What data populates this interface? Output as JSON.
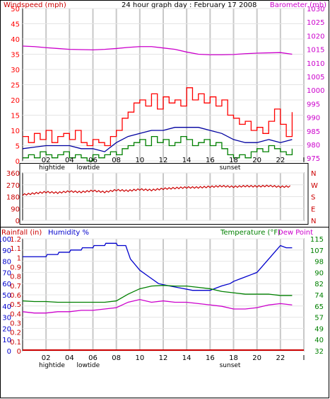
{
  "header": {
    "title": "24 hour graph day : February 17 2008",
    "left_label": "Windspeed (mph)",
    "right_label": "Barometer (mb)"
  },
  "panel3_labels": {
    "rainfall": "Rainfall (in)",
    "humidity": "Humidity %",
    "temperature": "Temperature (°F)",
    "dewpoint": "Dew Point"
  },
  "colors": {
    "wind": "#ff0000",
    "gust": "#ff0000",
    "avg_wind": "#0000a0",
    "low_wind": "#008000",
    "barometer": "#cc00cc",
    "direction": "#cc0000",
    "rain": "#cc0000",
    "humidity": "#0000cc",
    "temperature": "#008000",
    "dewpoint": "#cc00cc",
    "grid": "#c8c8c8",
    "frame": "#000000"
  },
  "x_ticks": [
    "02",
    "04",
    "06",
    "08",
    "10",
    "12",
    "14",
    "16",
    "18",
    "20",
    "22",
    "I"
  ],
  "x_events_panel1": [
    {
      "label": "hightide",
      "x": 2.5
    },
    {
      "label": "lowtide",
      "x": 5.6
    },
    {
      "label": "sunset",
      "x": 17.7
    }
  ],
  "x_events_panel3": [
    {
      "label": "hightide",
      "x": 2.5
    },
    {
      "label": "lowtide",
      "x": 5.6
    },
    {
      "label": "sunset",
      "x": 17.7
    }
  ],
  "chart_data": [
    {
      "type": "line",
      "xlim": [
        0,
        24
      ],
      "left_axis": {
        "ticks": [
          0,
          5,
          10,
          15,
          20,
          25,
          30,
          35,
          40,
          45,
          50
        ],
        "ylim": [
          0,
          50
        ]
      },
      "right_axis": {
        "ticks": [
          975,
          980,
          985,
          990,
          995,
          1000,
          1005,
          1010,
          1015,
          1020,
          1025,
          1030
        ],
        "ylim": [
          974,
          1030
        ]
      },
      "series": [
        {
          "key": "gust",
          "axis": "left",
          "x": [
            0,
            0.5,
            1,
            1.5,
            2,
            2.5,
            3,
            3.5,
            4,
            4.5,
            5,
            5.5,
            6,
            6.5,
            7,
            7.5,
            8,
            8.5,
            9,
            9.5,
            10,
            10.5,
            11,
            11.5,
            12,
            12.5,
            13,
            13.5,
            14,
            14.5,
            15,
            15.5,
            16,
            16.5,
            17,
            17.5,
            18,
            18.5,
            19,
            19.5,
            20,
            20.5,
            21,
            21.5,
            22,
            22.5,
            23
          ],
          "y": [
            8,
            6,
            9,
            7,
            10,
            6,
            8,
            9,
            7,
            10,
            6,
            5,
            7,
            6,
            5,
            8,
            10,
            14,
            16,
            19,
            20,
            18,
            22,
            17,
            21,
            19,
            20,
            18,
            24,
            20,
            22,
            19,
            21,
            18,
            20,
            15,
            14,
            12,
            13,
            10,
            11,
            9,
            13,
            17,
            12,
            8,
            16
          ]
        },
        {
          "key": "avg_wind",
          "axis": "left",
          "x": [
            0,
            1,
            2,
            3,
            4,
            5,
            6,
            7,
            8,
            9,
            10,
            11,
            12,
            13,
            14,
            15,
            16,
            17,
            18,
            19,
            20,
            21,
            22,
            23
          ],
          "y": [
            4,
            4.5,
            5,
            5,
            5,
            4,
            4,
            3,
            6,
            8,
            9,
            10,
            10,
            11,
            11,
            11,
            10,
            9,
            7,
            6,
            6,
            7,
            6,
            7
          ]
        },
        {
          "key": "low_wind",
          "axis": "left",
          "x": [
            0,
            0.5,
            1,
            1.5,
            2,
            2.5,
            3,
            3.5,
            4,
            4.5,
            5,
            5.5,
            6,
            6.5,
            7,
            7.5,
            8,
            8.5,
            9,
            9.5,
            10,
            10.5,
            11,
            11.5,
            12,
            12.5,
            13,
            13.5,
            14,
            14.5,
            15,
            15.5,
            16,
            16.5,
            17,
            17.5,
            18,
            18.5,
            19,
            19.5,
            20,
            20.5,
            21,
            21.5,
            22,
            22.5,
            23
          ],
          "y": [
            1,
            2,
            1,
            3,
            2,
            1,
            2,
            3,
            1,
            2,
            1,
            0,
            2,
            1,
            2,
            3,
            2,
            4,
            5,
            6,
            7,
            5,
            8,
            6,
            7,
            5,
            6,
            8,
            7,
            5,
            6,
            7,
            5,
            6,
            4,
            2,
            1,
            2,
            1,
            3,
            4,
            3,
            5,
            4,
            3,
            2,
            4
          ]
        },
        {
          "key": "barometer",
          "axis": "right",
          "x": [
            0,
            1,
            2,
            3,
            4,
            5,
            6,
            7,
            8,
            9,
            10,
            11,
            12,
            13,
            14,
            15,
            16,
            17,
            18,
            19,
            20,
            21,
            22,
            23
          ],
          "y": [
            1016.2,
            1016,
            1015.6,
            1015.3,
            1015,
            1014.9,
            1014.8,
            1015,
            1015.3,
            1015.7,
            1016,
            1016,
            1015.5,
            1015,
            1014,
            1013.2,
            1013,
            1013,
            1013.1,
            1013.4,
            1013.6,
            1013.7,
            1013.8,
            1013.2
          ]
        }
      ]
    },
    {
      "type": "line",
      "xlim": [
        0,
        24
      ],
      "left_axis": {
        "ticks": [
          0,
          90,
          180,
          270,
          360
        ],
        "ylim": [
          0,
          360
        ]
      },
      "right_axis_labels": [
        "N",
        "W",
        "S",
        "E",
        "N"
      ],
      "series": [
        {
          "key": "direction",
          "axis": "left",
          "x": [
            0,
            1,
            2,
            3,
            4,
            5,
            6,
            7,
            8,
            9,
            10,
            11,
            12,
            13,
            14,
            15,
            16,
            17,
            18,
            19,
            20,
            21,
            22,
            23
          ],
          "y": [
            195,
            205,
            215,
            210,
            220,
            215,
            225,
            215,
            230,
            225,
            235,
            230,
            240,
            245,
            250,
            250,
            255,
            260,
            255,
            260,
            258,
            262,
            255,
            258
          ]
        }
      ]
    },
    {
      "type": "line",
      "xlim": [
        0,
        24
      ],
      "rain_axis": {
        "ticks": [
          "0",
          "0.1",
          "0.2",
          "0.3",
          "0.4",
          "0.5",
          "0.6",
          "0.7",
          "0.8",
          "0.9",
          "1",
          "1.1",
          "1.2"
        ]
      },
      "humidity_axis": {
        "ticks": [
          "0",
          "10",
          "20",
          "30",
          "40",
          "50",
          "60",
          "70",
          "80",
          "90",
          "100"
        ],
        "ylim": [
          0,
          100
        ]
      },
      "temperature_axis": {
        "ticks": [
          "32",
          "40",
          "49",
          "57",
          "65",
          "74",
          "82",
          "90",
          "98",
          "107",
          "115"
        ],
        "ylim": [
          32,
          115
        ]
      },
      "series": [
        {
          "key": "rain",
          "axis": "rain",
          "x": [
            0,
            24
          ],
          "y": [
            0,
            0
          ]
        },
        {
          "key": "humidity",
          "axis": "humidity",
          "x": [
            0,
            2,
            2.1,
            3,
            3.1,
            4,
            4.1,
            5,
            5.1,
            6,
            6.1,
            7,
            7.1,
            8,
            8.1,
            8.8,
            9.2,
            10,
            10.8,
            11.6,
            12.5,
            13.5,
            14.5,
            15.5,
            16,
            16.5,
            17,
            17.7,
            18,
            18.5,
            19,
            19.5,
            20,
            20.5,
            21,
            21.5,
            22,
            22.5,
            23
          ],
          "y": [
            84,
            84,
            86,
            86,
            88,
            88,
            90,
            90,
            92,
            92,
            94,
            94,
            96,
            96,
            94,
            94,
            82,
            72,
            66,
            60,
            58,
            56,
            54,
            54,
            54,
            56,
            58,
            60,
            62,
            64,
            66,
            68,
            70,
            76,
            82,
            88,
            94,
            92,
            92
          ]
        },
        {
          "key": "temperature",
          "axis": "temperature",
          "x": [
            0,
            1,
            2,
            3,
            4,
            5,
            6,
            7,
            8,
            9,
            10,
            11,
            12,
            13,
            14,
            15,
            16,
            17,
            18,
            19,
            20,
            21,
            22,
            23
          ],
          "y": [
            69,
            68.5,
            68.5,
            68,
            68,
            68,
            68,
            68,
            69,
            74,
            78,
            80,
            80.5,
            80,
            80,
            79,
            78,
            76,
            75,
            74,
            74,
            74,
            73,
            73
          ]
        },
        {
          "key": "dewpoint",
          "axis": "temperature",
          "x": [
            0,
            1,
            2,
            3,
            4,
            5,
            6,
            7,
            8,
            9,
            10,
            11,
            12,
            13,
            14,
            15,
            16,
            17,
            18,
            19,
            20,
            21,
            22,
            23
          ],
          "y": [
            61,
            60,
            60,
            61,
            61,
            62,
            62,
            63,
            64,
            68,
            70,
            68,
            69,
            68,
            68,
            67,
            66,
            65,
            63,
            63,
            64,
            66,
            67,
            66
          ]
        }
      ]
    }
  ]
}
